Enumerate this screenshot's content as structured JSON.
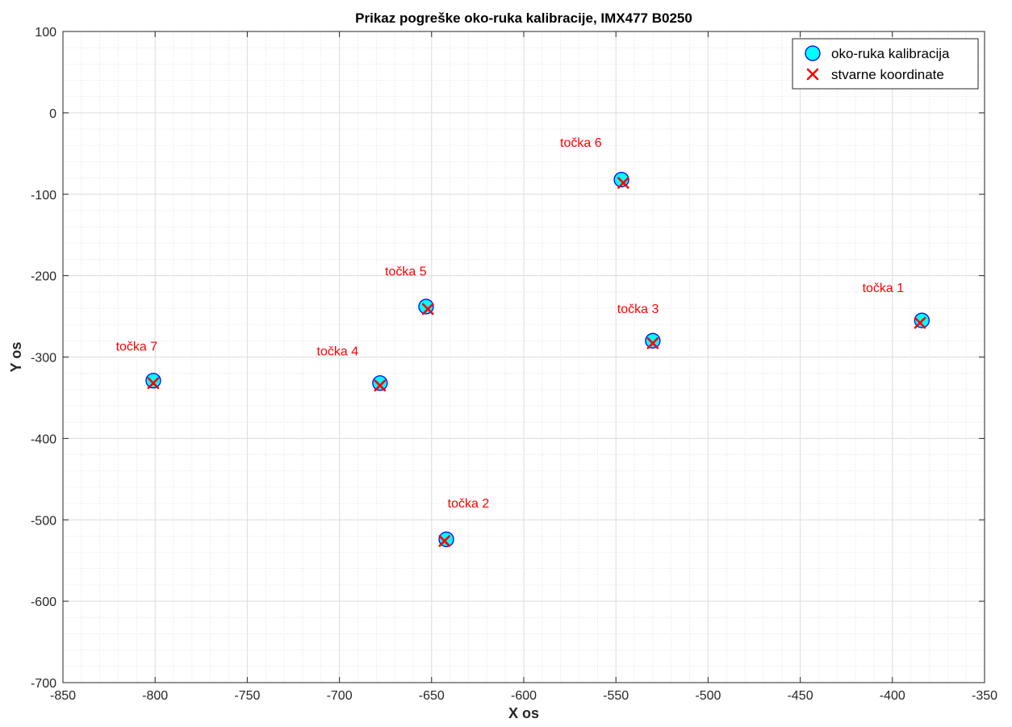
{
  "chart_data": {
    "type": "scatter",
    "title": "Prikaz pogreške oko-ruka kalibracije, IMX477 B0250",
    "xlabel": "X os",
    "ylabel": "Y os",
    "xlim": [
      -850,
      -350
    ],
    "ylim": [
      -700,
      100
    ],
    "xticks": [
      -850,
      -800,
      -750,
      -700,
      -650,
      -600,
      -550,
      -500,
      -450,
      -400,
      -350
    ],
    "yticks": [
      100,
      0,
      -100,
      -200,
      -300,
      -400,
      -500,
      -600,
      -700
    ],
    "xtick_labels": [
      "-850",
      "-800",
      "-750",
      "-700",
      "-650",
      "-600",
      "-550",
      "-500",
      "-450",
      "-400",
      "-350"
    ],
    "ytick_labels": [
      "100",
      "0",
      "-100",
      "-200",
      "-300",
      "-400",
      "-500",
      "-600",
      "-700"
    ],
    "grid": true,
    "minor_grid": true,
    "legend_position": "top-right",
    "series": [
      {
        "name": "oko-ruka kalibracija",
        "marker": "circle",
        "color": "#00ffff",
        "edge_color": "#0000ff",
        "points": [
          {
            "x": -384,
            "y": -255
          },
          {
            "x": -642,
            "y": -524
          },
          {
            "x": -530,
            "y": -280
          },
          {
            "x": -678,
            "y": -332
          },
          {
            "x": -653,
            "y": -238
          },
          {
            "x": -547,
            "y": -82
          },
          {
            "x": -801,
            "y": -329
          }
        ]
      },
      {
        "name": "stvarne koordinate",
        "marker": "x",
        "color": "#ff0000",
        "points": [
          {
            "x": -385,
            "y": -258
          },
          {
            "x": -643,
            "y": -526
          },
          {
            "x": -530,
            "y": -283
          },
          {
            "x": -678,
            "y": -335
          },
          {
            "x": -652,
            "y": -241
          },
          {
            "x": -546,
            "y": -86
          },
          {
            "x": -801,
            "y": -332
          }
        ]
      }
    ],
    "annotations": [
      {
        "text": "točka 1",
        "x": -405,
        "y": -220
      },
      {
        "text": "točka 2",
        "x": -630,
        "y": -485
      },
      {
        "text": "točka 3",
        "x": -538,
        "y": -246
      },
      {
        "text": "točka 4",
        "x": -701,
        "y": -298
      },
      {
        "text": "točka 5",
        "x": -664,
        "y": -200
      },
      {
        "text": "točka 6",
        "x": -569,
        "y": -42
      },
      {
        "text": "točka 7",
        "x": -810,
        "y": -292
      }
    ]
  }
}
